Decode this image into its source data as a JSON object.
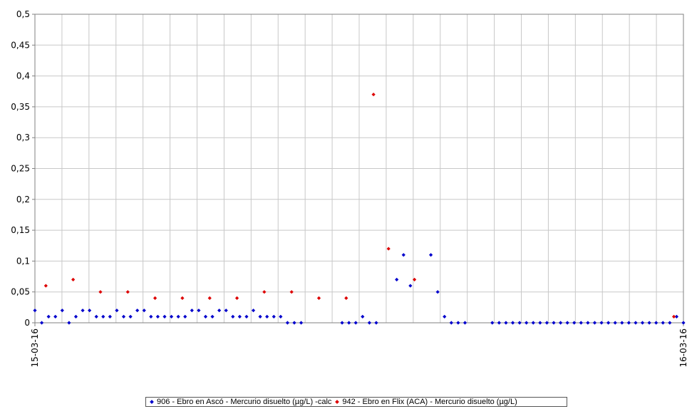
{
  "chart_data": {
    "type": "scatter",
    "ylim": [
      0,
      0.5
    ],
    "y_ticks": [
      "0",
      "0,05",
      "0,1",
      "0,15",
      "0,2",
      "0,25",
      "0,3",
      "0,35",
      "0,4",
      "0,45",
      "0,5"
    ],
    "x_tick_labels": [
      "15-03-16",
      "16-03-16"
    ],
    "grid": true,
    "legend_position": "bottom",
    "series": [
      {
        "name": "906 - Ebro en Ascó - Mercurio disuelto (µg/L) -calc",
        "color": "#0000cc",
        "points": [
          [
            0,
            0.02
          ],
          [
            1,
            0
          ],
          [
            2,
            0.01
          ],
          [
            3,
            0.01
          ],
          [
            4,
            0.02
          ],
          [
            5,
            0
          ],
          [
            6,
            0.01
          ],
          [
            7,
            0.02
          ],
          [
            8,
            0.02
          ],
          [
            9,
            0.01
          ],
          [
            10,
            0.01
          ],
          [
            11,
            0.01
          ],
          [
            12,
            0.02
          ],
          [
            13,
            0.01
          ],
          [
            14,
            0.01
          ],
          [
            15,
            0.02
          ],
          [
            16,
            0.02
          ],
          [
            17,
            0.01
          ],
          [
            18,
            0.01
          ],
          [
            19,
            0.01
          ],
          [
            20,
            0.01
          ],
          [
            21,
            0.01
          ],
          [
            22,
            0.01
          ],
          [
            23,
            0.02
          ],
          [
            24,
            0.02
          ],
          [
            25,
            0.01
          ],
          [
            26,
            0.01
          ],
          [
            27,
            0.02
          ],
          [
            28,
            0.02
          ],
          [
            29,
            0.01
          ],
          [
            30,
            0.01
          ],
          [
            31,
            0.01
          ],
          [
            32,
            0.02
          ],
          [
            33,
            0.01
          ],
          [
            34,
            0.01
          ],
          [
            35,
            0.01
          ],
          [
            36,
            0.01
          ],
          [
            37,
            0
          ],
          [
            38,
            0
          ],
          [
            39,
            0
          ],
          [
            45,
            0
          ],
          [
            46,
            0
          ],
          [
            47,
            0
          ],
          [
            48,
            0.01
          ],
          [
            49,
            0
          ],
          [
            50,
            0
          ],
          [
            53,
            0.07
          ],
          [
            54,
            0.11
          ],
          [
            55,
            0.06
          ],
          [
            58,
            0.11
          ],
          [
            59,
            0.05
          ],
          [
            60,
            0.01
          ],
          [
            61,
            0
          ],
          [
            62,
            0
          ],
          [
            63,
            0
          ],
          [
            67,
            0
          ],
          [
            68,
            0
          ],
          [
            69,
            0
          ],
          [
            70,
            0
          ],
          [
            71,
            0
          ],
          [
            72,
            0
          ],
          [
            73,
            0
          ],
          [
            74,
            0
          ],
          [
            75,
            0
          ],
          [
            76,
            0
          ],
          [
            77,
            0
          ],
          [
            78,
            0
          ],
          [
            79,
            0
          ],
          [
            80,
            0
          ],
          [
            81,
            0
          ],
          [
            82,
            0
          ],
          [
            83,
            0
          ],
          [
            84,
            0
          ],
          [
            85,
            0
          ],
          [
            86,
            0
          ],
          [
            87,
            0
          ],
          [
            88,
            0
          ],
          [
            89,
            0
          ],
          [
            90,
            0
          ],
          [
            91,
            0
          ],
          [
            92,
            0
          ],
          [
            93,
            0
          ],
          [
            94,
            0.01
          ],
          [
            95,
            0
          ]
        ]
      },
      {
        "name": "942 - Ebro en Flix (ACA) - Mercurio disuelto (µg/L)",
        "color": "#dd0000",
        "points": [
          [
            1.6,
            0.06
          ],
          [
            5.6,
            0.07
          ],
          [
            9.6,
            0.05
          ],
          [
            13.6,
            0.05
          ],
          [
            17.6,
            0.04
          ],
          [
            21.6,
            0.04
          ],
          [
            25.6,
            0.04
          ],
          [
            29.6,
            0.04
          ],
          [
            33.6,
            0.05
          ],
          [
            37.6,
            0.05
          ],
          [
            41.6,
            0.04
          ],
          [
            45.6,
            0.04
          ],
          [
            49.6,
            0.37
          ],
          [
            51.8,
            0.12
          ],
          [
            55.6,
            0.07
          ],
          [
            93.6,
            0.01
          ]
        ]
      }
    ]
  }
}
